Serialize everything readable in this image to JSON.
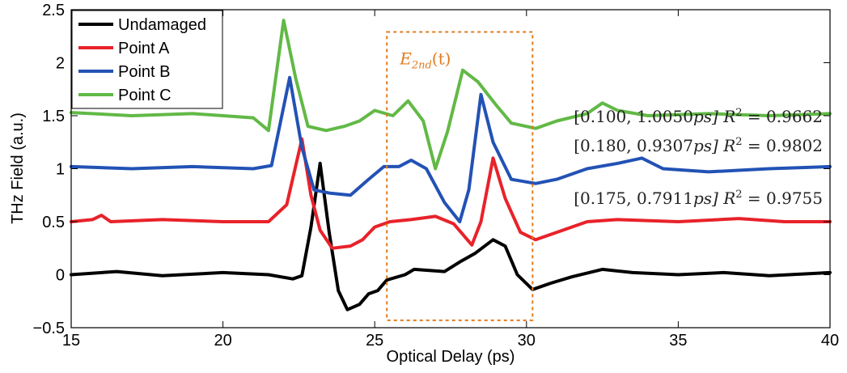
{
  "chart_data": {
    "type": "line",
    "xlabel": "Optical Delay (ps)",
    "ylabel": "THz Field (a.u.)",
    "xlim": [
      15,
      40
    ],
    "ylim": [
      -0.5,
      2.5
    ],
    "x_ticks": [
      "15",
      "20",
      "25",
      "30",
      "35",
      "40"
    ],
    "y_ticks": [
      "−0.5",
      "0",
      "0.5",
      "1",
      "1.5",
      "2",
      "2.5"
    ],
    "grid": false,
    "legend_position": "top-left",
    "series": [
      {
        "name": "Undamaged",
        "color": "#000000",
        "points": [
          [
            15,
            0.0
          ],
          [
            16.5,
            0.03
          ],
          [
            18,
            -0.01
          ],
          [
            20,
            0.02
          ],
          [
            21.5,
            0.0
          ],
          [
            22.3,
            -0.04
          ],
          [
            22.6,
            -0.01
          ],
          [
            22.9,
            0.45
          ],
          [
            23.2,
            1.05
          ],
          [
            23.5,
            0.4
          ],
          [
            23.8,
            -0.15
          ],
          [
            24.1,
            -0.33
          ],
          [
            24.5,
            -0.28
          ],
          [
            24.8,
            -0.18
          ],
          [
            25.1,
            -0.15
          ],
          [
            25.4,
            -0.05
          ],
          [
            26,
            0.0
          ],
          [
            26.3,
            0.05
          ],
          [
            26.8,
            0.04
          ],
          [
            27.3,
            0.03
          ],
          [
            27.8,
            0.12
          ],
          [
            28.3,
            0.2
          ],
          [
            28.9,
            0.33
          ],
          [
            29.3,
            0.27
          ],
          [
            29.7,
            0.0
          ],
          [
            30.2,
            -0.14
          ],
          [
            30.8,
            -0.08
          ],
          [
            31.5,
            -0.02
          ],
          [
            32.5,
            0.05
          ],
          [
            33.5,
            0.02
          ],
          [
            35,
            0.0
          ],
          [
            36.5,
            0.02
          ],
          [
            38,
            -0.01
          ],
          [
            40,
            0.02
          ]
        ]
      },
      {
        "name": "Point A",
        "color": "#e8222a",
        "points": [
          [
            15,
            0.5
          ],
          [
            15.7,
            0.52
          ],
          [
            16,
            0.56
          ],
          [
            16.3,
            0.5
          ],
          [
            18,
            0.52
          ],
          [
            20,
            0.5
          ],
          [
            21.5,
            0.5
          ],
          [
            22.1,
            0.66
          ],
          [
            22.6,
            1.28
          ],
          [
            22.9,
            0.75
          ],
          [
            23.2,
            0.42
          ],
          [
            23.6,
            0.25
          ],
          [
            24.2,
            0.27
          ],
          [
            24.6,
            0.33
          ],
          [
            25,
            0.45
          ],
          [
            25.5,
            0.5
          ],
          [
            26.2,
            0.52
          ],
          [
            27,
            0.55
          ],
          [
            27.6,
            0.48
          ],
          [
            28.2,
            0.28
          ],
          [
            28.5,
            0.5
          ],
          [
            28.9,
            1.1
          ],
          [
            29.3,
            0.72
          ],
          [
            29.8,
            0.4
          ],
          [
            30.3,
            0.33
          ],
          [
            31,
            0.4
          ],
          [
            32,
            0.5
          ],
          [
            33,
            0.52
          ],
          [
            35,
            0.5
          ],
          [
            37,
            0.53
          ],
          [
            38.5,
            0.5
          ],
          [
            40,
            0.5
          ]
        ]
      },
      {
        "name": "Point B",
        "color": "#2352b5",
        "points": [
          [
            15,
            1.02
          ],
          [
            17,
            1.0
          ],
          [
            19,
            1.02
          ],
          [
            21,
            1.0
          ],
          [
            21.6,
            1.03
          ],
          [
            22.2,
            1.86
          ],
          [
            22.6,
            1.2
          ],
          [
            23,
            0.8
          ],
          [
            23.5,
            0.77
          ],
          [
            24.2,
            0.75
          ],
          [
            24.8,
            0.9
          ],
          [
            25.3,
            1.02
          ],
          [
            25.8,
            1.02
          ],
          [
            26.2,
            1.08
          ],
          [
            26.7,
            1.0
          ],
          [
            27.3,
            0.68
          ],
          [
            27.8,
            0.5
          ],
          [
            28.1,
            0.8
          ],
          [
            28.5,
            1.7
          ],
          [
            28.9,
            1.25
          ],
          [
            29.5,
            0.9
          ],
          [
            30.3,
            0.86
          ],
          [
            31,
            0.9
          ],
          [
            32,
            1.0
          ],
          [
            33,
            1.05
          ],
          [
            33.8,
            1.1
          ],
          [
            34.5,
            1.0
          ],
          [
            36,
            0.97
          ],
          [
            38,
            1.0
          ],
          [
            40,
            1.02
          ]
        ]
      },
      {
        "name": "Point C",
        "color": "#62b946",
        "points": [
          [
            15,
            1.53
          ],
          [
            17,
            1.5
          ],
          [
            19,
            1.52
          ],
          [
            21,
            1.48
          ],
          [
            21.5,
            1.36
          ],
          [
            22,
            2.4
          ],
          [
            22.4,
            1.85
          ],
          [
            22.8,
            1.4
          ],
          [
            23.4,
            1.36
          ],
          [
            24,
            1.4
          ],
          [
            24.5,
            1.45
          ],
          [
            25,
            1.55
          ],
          [
            25.6,
            1.5
          ],
          [
            26.1,
            1.64
          ],
          [
            26.6,
            1.45
          ],
          [
            27,
            1.0
          ],
          [
            27.4,
            1.35
          ],
          [
            27.9,
            1.93
          ],
          [
            28.4,
            1.82
          ],
          [
            29,
            1.6
          ],
          [
            29.5,
            1.43
          ],
          [
            30.3,
            1.38
          ],
          [
            31,
            1.45
          ],
          [
            32,
            1.52
          ],
          [
            32.5,
            1.62
          ],
          [
            33,
            1.55
          ],
          [
            34,
            1.5
          ],
          [
            36,
            1.52
          ],
          [
            38,
            1.5
          ],
          [
            40,
            1.52
          ]
        ]
      }
    ],
    "annotations": [
      {
        "interval": "[0.100, 1.0050",
        "unit": "ps]",
        "r2_label": "R",
        "r2_sup": "2",
        "r2_value": " = 0.9662"
      },
      {
        "interval": "[0.180, 0.9307",
        "unit": "ps]",
        "r2_label": "R",
        "r2_sup": "2",
        "r2_value": " = 0.9802"
      },
      {
        "interval": "[0.175, 0.7911",
        "unit": "ps]",
        "r2_label": "R",
        "r2_sup": "2",
        "r2_value": " = 0.9755"
      }
    ],
    "window": {
      "label": "E",
      "label_sub": "2nd",
      "label_arg": "(t)",
      "x_range": [
        25.4,
        30.2
      ],
      "y_range": [
        -0.43,
        2.29
      ],
      "color": "#e07b1f"
    }
  }
}
